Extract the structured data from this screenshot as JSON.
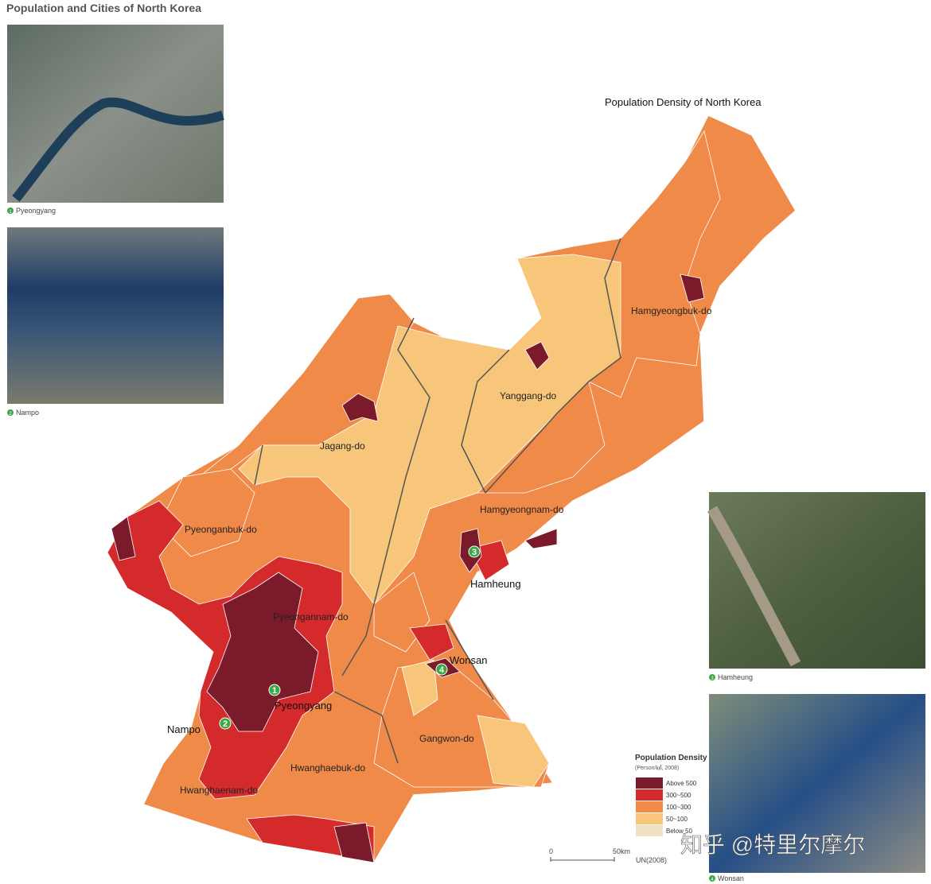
{
  "title": "Population and Cities of North Korea",
  "photos": [
    {
      "number": "1",
      "caption": "Pyeongyang"
    },
    {
      "number": "2",
      "caption": "Nampo"
    },
    {
      "number": "3",
      "caption": "Hamheung"
    },
    {
      "number": "4",
      "caption": "Wonsan"
    }
  ],
  "map": {
    "title": "Population Density of North Korea",
    "regions": [
      "Hamgyeongbuk-do",
      "Yanggang-do",
      "Jagang-do",
      "Hamgyeongnam-do",
      "Pyeonganbuk-do",
      "Pyeongannam-do",
      "Gangwon-do",
      "Hwanghaebuk-do",
      "Hwanghaenam-do"
    ],
    "cities": [
      {
        "number": "1",
        "name": "Pyeongyang"
      },
      {
        "number": "2",
        "name": "Nampo"
      },
      {
        "number": "3",
        "name": "Hamheung"
      },
      {
        "number": "4",
        "name": "Wonsan"
      }
    ]
  },
  "legend": {
    "title": "Population Density",
    "subtitle": "(Person/㎢, 2008)",
    "items": [
      {
        "label": "Above 500",
        "color": "#7a1a2b"
      },
      {
        "label": "300~500",
        "color": "#d52a2c"
      },
      {
        "label": "100~300",
        "color": "#f08a49"
      },
      {
        "label": "50~100",
        "color": "#f8c67a"
      },
      {
        "label": "Below 50",
        "color": "#ede3c3"
      }
    ]
  },
  "scale": {
    "start": "0",
    "end": "50km",
    "source": "UN(2008)"
  },
  "watermark": "知乎 @特里尔摩尔"
}
